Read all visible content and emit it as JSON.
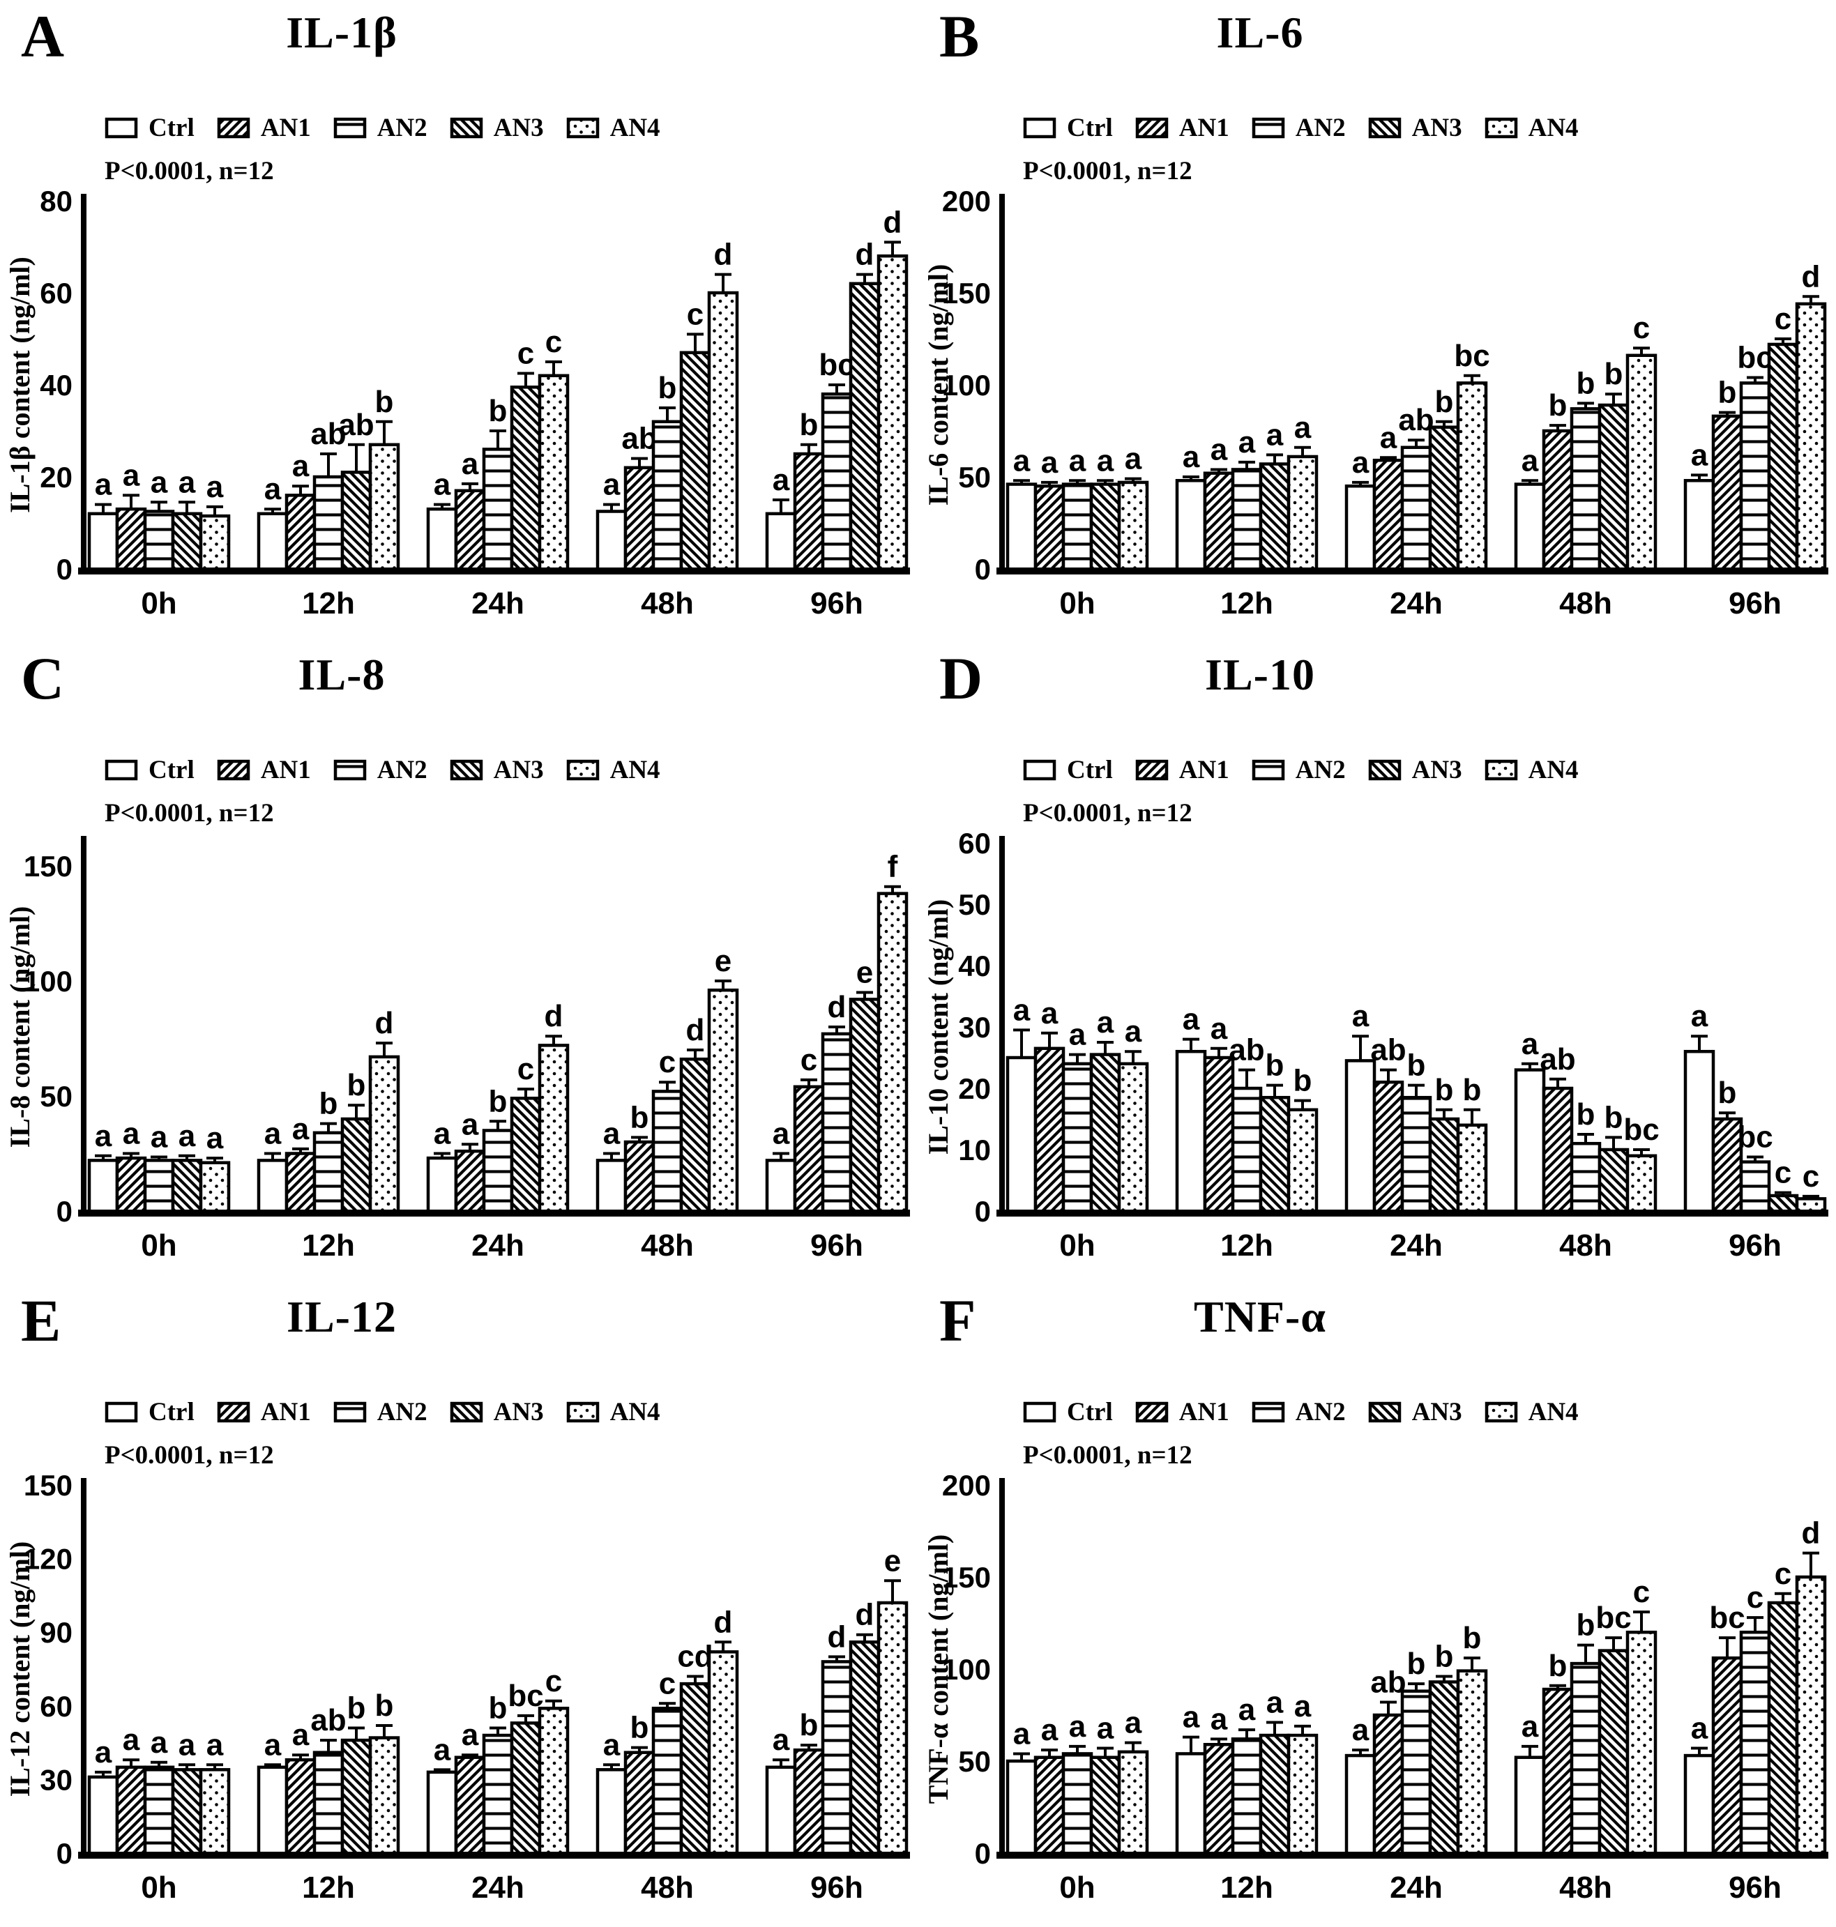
{
  "figure": {
    "background": "#ffffff",
    "ink": "#000000",
    "series_patterns": [
      "plain",
      "diag-forward",
      "horizontal",
      "diag-back",
      "dots"
    ],
    "panels": [
      {
        "label": "A",
        "title": "IL-1β",
        "pvalue": "P<0.0001, n=12",
        "chart_data": {
          "type": "bar",
          "ylabel": "IL-1β content (ng/ml)",
          "xlabel": "",
          "ylim": [
            0,
            80
          ],
          "yticks": [
            0,
            20,
            40,
            60,
            80
          ],
          "grid": false,
          "legend_position": "top",
          "categories": [
            "0h",
            "12h",
            "24h",
            "48h",
            "96h"
          ],
          "series": [
            {
              "name": "Ctrl",
              "pattern": "plain",
              "values": [
                12,
                12,
                13,
                12.5,
                12
              ],
              "errors": [
                2,
                1,
                1,
                1.5,
                3
              ],
              "sig": [
                "a",
                "a",
                "a",
                "a",
                "a"
              ]
            },
            {
              "name": "AN1",
              "pattern": "diag-forward",
              "values": [
                13,
                16,
                17,
                22,
                25
              ],
              "errors": [
                3,
                2,
                1.5,
                2,
                2
              ],
              "sig": [
                "a",
                "a",
                "a",
                "ab",
                "b"
              ]
            },
            {
              "name": "AN2",
              "pattern": "horizontal",
              "values": [
                12.5,
                20,
                26,
                32,
                38
              ],
              "errors": [
                2,
                5,
                4,
                3,
                2
              ],
              "sig": [
                "a",
                "ab",
                "b",
                "b",
                "bc"
              ]
            },
            {
              "name": "AN3",
              "pattern": "diag-back",
              "values": [
                12,
                21,
                39.5,
                47,
                62
              ],
              "errors": [
                2.5,
                6,
                3,
                4,
                2
              ],
              "sig": [
                "a",
                "ab",
                "c",
                "c",
                "d"
              ]
            },
            {
              "name": "AN4",
              "pattern": "dots",
              "values": [
                11.5,
                27,
                42,
                60,
                68
              ],
              "errors": [
                2,
                5,
                3,
                4,
                3
              ],
              "sig": [
                "a",
                "b",
                "c",
                "d",
                "d"
              ]
            }
          ]
        }
      },
      {
        "label": "B",
        "title": "IL-6",
        "pvalue": "P<0.0001, n=12",
        "chart_data": {
          "type": "bar",
          "ylabel": "IL-6 content (ng/ml)",
          "xlabel": "",
          "ylim": [
            0,
            200
          ],
          "yticks": [
            0,
            50,
            100,
            150,
            200
          ],
          "grid": false,
          "legend_position": "top",
          "categories": [
            "0h",
            "12h",
            "24h",
            "48h",
            "96h"
          ],
          "series": [
            {
              "name": "Ctrl",
              "pattern": "plain",
              "values": [
                46,
                48,
                45,
                46,
                48
              ],
              "errors": [
                2,
                2,
                2,
                2,
                3
              ],
              "sig": [
                "a",
                "a",
                "a",
                "a",
                "a"
              ]
            },
            {
              "name": "AN1",
              "pattern": "diag-forward",
              "values": [
                45,
                52,
                59,
                75,
                83
              ],
              "errors": [
                2,
                2,
                1.5,
                3,
                2
              ],
              "sig": [
                "a",
                "a",
                "a",
                "b",
                "b"
              ]
            },
            {
              "name": "AN2",
              "pattern": "horizontal",
              "values": [
                46,
                54,
                66,
                87,
                101
              ],
              "errors": [
                2,
                4,
                4,
                3,
                3
              ],
              "sig": [
                "a",
                "a",
                "ab",
                "b",
                "bc"
              ]
            },
            {
              "name": "AN3",
              "pattern": "diag-back",
              "values": [
                46,
                57,
                77,
                89,
                122
              ],
              "errors": [
                2,
                5,
                3,
                6,
                3
              ],
              "sig": [
                "a",
                "a",
                "b",
                "b",
                "c"
              ]
            },
            {
              "name": "AN4",
              "pattern": "dots",
              "values": [
                47,
                61,
                101,
                116,
                144
              ],
              "errors": [
                2,
                5,
                4,
                4,
                4
              ],
              "sig": [
                "a",
                "a",
                "bc",
                "c",
                "d"
              ]
            }
          ]
        }
      },
      {
        "label": "C",
        "title": "IL-8",
        "pvalue": "P<0.0001, n=12",
        "chart_data": {
          "type": "bar",
          "ylabel": "IL-8 content (ng/ml)",
          "xlabel": "",
          "ylim": [
            0,
            160
          ],
          "yticks": [
            0,
            50,
            100,
            150
          ],
          "grid": false,
          "legend_position": "top",
          "categories": [
            "0h",
            "12h",
            "24h",
            "48h",
            "96h"
          ],
          "series": [
            {
              "name": "Ctrl",
              "pattern": "plain",
              "values": [
                22,
                22,
                23,
                22,
                22
              ],
              "errors": [
                2,
                3,
                2,
                3,
                3
              ],
              "sig": [
                "a",
                "a",
                "a",
                "a",
                "a"
              ]
            },
            {
              "name": "AN1",
              "pattern": "diag-forward",
              "values": [
                23,
                25,
                26,
                30,
                54
              ],
              "errors": [
                2,
                2,
                3,
                2,
                3
              ],
              "sig": [
                "a",
                "a",
                "a",
                "b",
                "c"
              ]
            },
            {
              "name": "AN2",
              "pattern": "horizontal",
              "values": [
                22,
                34,
                35,
                52,
                77
              ],
              "errors": [
                1.5,
                4,
                4,
                4,
                3
              ],
              "sig": [
                "a",
                "b",
                "b",
                "c",
                "d"
              ]
            },
            {
              "name": "AN3",
              "pattern": "diag-back",
              "values": [
                22,
                40,
                49,
                66,
                92
              ],
              "errors": [
                2,
                6,
                4,
                4,
                3
              ],
              "sig": [
                "a",
                "b",
                "c",
                "d",
                "e"
              ]
            },
            {
              "name": "AN4",
              "pattern": "dots",
              "values": [
                21,
                67,
                72,
                96,
                138
              ],
              "errors": [
                2,
                6,
                4,
                4,
                3
              ],
              "sig": [
                "a",
                "d",
                "d",
                "e",
                "f"
              ]
            }
          ]
        }
      },
      {
        "label": "D",
        "title": "IL-10",
        "pvalue": "P<0.0001, n=12",
        "chart_data": {
          "type": "bar",
          "ylabel": "IL-10 content (ng/ml)",
          "xlabel": "",
          "ylim": [
            0,
            60
          ],
          "yticks": [
            0,
            10,
            20,
            30,
            40,
            50,
            60
          ],
          "grid": false,
          "legend_position": "top",
          "categories": [
            "0h",
            "12h",
            "24h",
            "48h",
            "96h"
          ],
          "series": [
            {
              "name": "Ctrl",
              "pattern": "plain",
              "values": [
                25,
                26,
                24.5,
                23,
                26
              ],
              "errors": [
                4.5,
                2,
                4,
                1,
                2.5
              ],
              "sig": [
                "a",
                "a",
                "a",
                "a",
                "a"
              ]
            },
            {
              "name": "AN1",
              "pattern": "diag-forward",
              "values": [
                26.5,
                25,
                21,
                20,
                15
              ],
              "errors": [
                2.5,
                1.5,
                2,
                1.5,
                1
              ],
              "sig": [
                "a",
                "a",
                "ab",
                "ab",
                "b"
              ]
            },
            {
              "name": "AN2",
              "pattern": "horizontal",
              "values": [
                24,
                20,
                18.5,
                11,
                8
              ],
              "errors": [
                1.5,
                3,
                2,
                1.5,
                0.8
              ],
              "sig": [
                "a",
                "ab",
                "b",
                "b",
                "bc"
              ]
            },
            {
              "name": "AN3",
              "pattern": "diag-back",
              "values": [
                25.5,
                18.5,
                15,
                10,
                2.5
              ],
              "errors": [
                2,
                2,
                1.5,
                2,
                0.5
              ],
              "sig": [
                "a",
                "b",
                "b",
                "b",
                "c"
              ]
            },
            {
              "name": "AN4",
              "pattern": "dots",
              "values": [
                24,
                16.5,
                14,
                9,
                2
              ],
              "errors": [
                2,
                1.5,
                2.5,
                1,
                0.4
              ],
              "sig": [
                "a",
                "b",
                "b",
                "bc",
                "c"
              ]
            }
          ]
        }
      },
      {
        "label": "E",
        "title": "IL-12",
        "pvalue": "P<0.0001, n=12",
        "chart_data": {
          "type": "bar",
          "ylabel": "IL-12 content (ng/ml)",
          "xlabel": "",
          "ylim": [
            0,
            150
          ],
          "yticks": [
            0,
            30,
            60,
            90,
            120,
            150
          ],
          "grid": false,
          "legend_position": "top",
          "categories": [
            "0h",
            "12h",
            "24h",
            "48h",
            "96h"
          ],
          "series": [
            {
              "name": "Ctrl",
              "pattern": "plain",
              "values": [
                31,
                35,
                33,
                34,
                35
              ],
              "errors": [
                2,
                1,
                1,
                2,
                3
              ],
              "sig": [
                "a",
                "a",
                "a",
                "a",
                "a"
              ]
            },
            {
              "name": "AN1",
              "pattern": "diag-forward",
              "values": [
                35,
                38,
                39,
                41,
                42
              ],
              "errors": [
                3,
                2,
                1,
                2,
                2
              ],
              "sig": [
                "a",
                "a",
                "a",
                "b",
                "b"
              ]
            },
            {
              "name": "AN2",
              "pattern": "horizontal",
              "values": [
                35,
                41,
                48,
                59,
                78
              ],
              "errors": [
                2,
                5,
                3,
                2,
                2
              ],
              "sig": [
                "a",
                "ab",
                "b",
                "c",
                "d"
              ]
            },
            {
              "name": "AN3",
              "pattern": "diag-back",
              "values": [
                34,
                46,
                53,
                69,
                86
              ],
              "errors": [
                2,
                5,
                3,
                3,
                3
              ],
              "sig": [
                "a",
                "b",
                "bc",
                "cd",
                "d"
              ]
            },
            {
              "name": "AN4",
              "pattern": "dots",
              "values": [
                34,
                47,
                59,
                82,
                102
              ],
              "errors": [
                2,
                5,
                3,
                4,
                9
              ],
              "sig": [
                "a",
                "b",
                "c",
                "d",
                "e"
              ]
            }
          ]
        }
      },
      {
        "label": "F",
        "title": "TNF-α",
        "pvalue": "P<0.0001, n=12",
        "chart_data": {
          "type": "bar",
          "ylabel": "TNF-α content (ng/ml)",
          "xlabel": "",
          "ylim": [
            0,
            200
          ],
          "yticks": [
            0,
            50,
            100,
            150,
            200
          ],
          "grid": false,
          "legend_position": "top",
          "categories": [
            "0h",
            "12h",
            "24h",
            "48h",
            "96h"
          ],
          "series": [
            {
              "name": "Ctrl",
              "pattern": "plain",
              "values": [
                50,
                54,
                53,
                52,
                53
              ],
              "errors": [
                4,
                9,
                3,
                6,
                4
              ],
              "sig": [
                "a",
                "a",
                "a",
                "a",
                "a"
              ]
            },
            {
              "name": "AN1",
              "pattern": "diag-forward",
              "values": [
                52,
                59,
                75,
                89,
                106
              ],
              "errors": [
                4,
                3,
                7,
                2,
                11
              ],
              "sig": [
                "a",
                "a",
                "ab",
                "b",
                "bc"
              ]
            },
            {
              "name": "AN2",
              "pattern": "horizontal",
              "values": [
                54,
                62,
                88,
                103,
                120
              ],
              "errors": [
                4,
                5,
                4,
                10,
                8
              ],
              "sig": [
                "a",
                "a",
                "b",
                "b",
                "c"
              ]
            },
            {
              "name": "AN3",
              "pattern": "diag-back",
              "values": [
                52,
                64,
                93,
                110,
                136
              ],
              "errors": [
                5,
                7,
                3,
                7,
                5
              ],
              "sig": [
                "a",
                "a",
                "b",
                "bc",
                "c"
              ]
            },
            {
              "name": "AN4",
              "pattern": "dots",
              "values": [
                55,
                64,
                99,
                120,
                150
              ],
              "errors": [
                5,
                5,
                7,
                11,
                13
              ],
              "sig": [
                "a",
                "a",
                "b",
                "c",
                "d"
              ]
            }
          ]
        }
      }
    ]
  }
}
